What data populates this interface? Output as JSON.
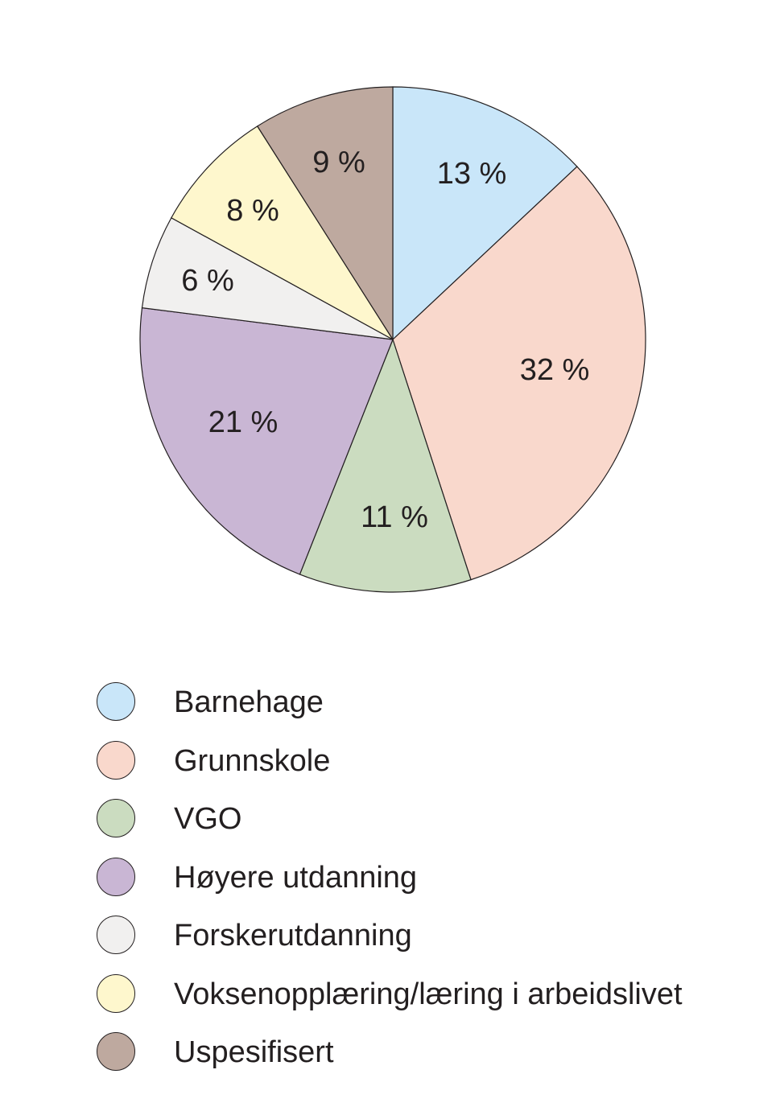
{
  "chart_data": {
    "type": "pie",
    "title": "",
    "start_angle_deg": 0,
    "direction": "clockwise",
    "categories": [
      "Barnehage",
      "Grunnskole",
      "VGO",
      "Høyere utdanning",
      "Forskerutdanning",
      "Voksenopplæring/læring i arbeidslivet",
      "Uspesifisert"
    ],
    "values": [
      13,
      32,
      11,
      21,
      6,
      8,
      9
    ],
    "labels": [
      "13 %",
      "32 %",
      "11 %",
      "21 %",
      "6 %",
      "8 %",
      "9 %"
    ],
    "colors": [
      "#c9e6f9",
      "#f9d8cc",
      "#cbdcc0",
      "#c9b6d4",
      "#f1f0ef",
      "#fef7cd",
      "#bea99f"
    ],
    "unit": "%",
    "legend_position": "bottom"
  },
  "legend": {
    "items": [
      {
        "label": "Barnehage",
        "color": "#c9e6f9"
      },
      {
        "label": "Grunnskole",
        "color": "#f9d8cc"
      },
      {
        "label": "VGO",
        "color": "#cbdcc0"
      },
      {
        "label": "Høyere utdanning",
        "color": "#c9b6d4"
      },
      {
        "label": "Forskerutdanning",
        "color": "#f1f0ef"
      },
      {
        "label": "Voksenopplæring/læring i arbeidslivet",
        "color": "#fef7cd"
      },
      {
        "label": "Uspesifisert",
        "color": "#bea99f"
      }
    ]
  }
}
